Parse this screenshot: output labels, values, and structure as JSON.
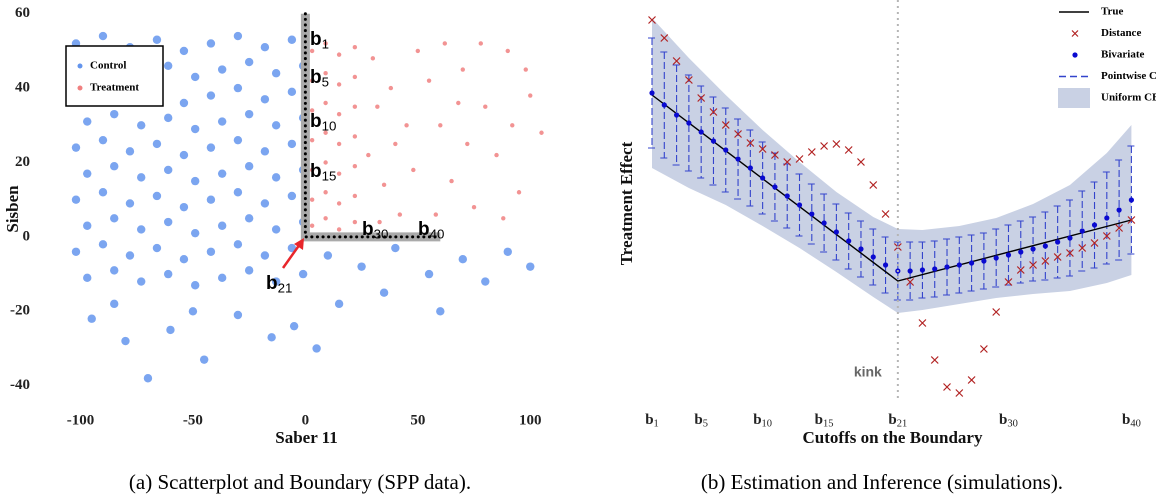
{
  "chart_data": [
    {
      "type": "scatter",
      "caption": "(a) Scatterplot and Boundary (SPP data).",
      "xlabel": "Saber 11",
      "ylabel": "Sisben",
      "xlim": [
        -110,
        111
      ],
      "ylim": [
        -46,
        61
      ],
      "xticks": [
        -100,
        -50,
        0,
        50,
        100
      ],
      "yticks": [
        -40,
        -20,
        0,
        20,
        40,
        60
      ],
      "legend": "top-left",
      "series": [
        {
          "name": "Control",
          "color": "#6495ed",
          "x": [
            -102,
            -90,
            -78,
            -66,
            -54,
            -42,
            -30,
            -18,
            -6,
            -97,
            -85,
            -73,
            -61,
            -49,
            -37,
            -25,
            -13,
            -1,
            -102,
            -90,
            -78,
            -66,
            -54,
            -42,
            -30,
            -18,
            -6,
            -97,
            -85,
            -73,
            -61,
            -49,
            -37,
            -25,
            -13,
            -1,
            -102,
            -90,
            -78,
            -66,
            -54,
            -42,
            -30,
            -18,
            -6,
            -97,
            -85,
            -73,
            -61,
            -49,
            -37,
            -25,
            -13,
            -1,
            -102,
            -90,
            -78,
            -66,
            -54,
            -42,
            -30,
            -18,
            -6,
            -97,
            -85,
            -73,
            -61,
            -49,
            -37,
            -25,
            -13,
            -1,
            -102,
            -90,
            -78,
            -66,
            -54,
            -42,
            -30,
            -18,
            -6,
            -97,
            -85,
            -73,
            -61,
            -49,
            -37,
            -25,
            -13,
            -1,
            -95,
            -80,
            -60,
            -45,
            -30,
            -15,
            -70,
            -5,
            -50,
            -85,
            10,
            25,
            40,
            55,
            70,
            90,
            15,
            35,
            60,
            80,
            100,
            5
          ],
          "values": [
            52,
            54,
            51,
            53,
            50,
            52,
            54,
            51,
            53,
            45,
            47,
            44,
            46,
            43,
            45,
            47,
            44,
            46,
            38,
            40,
            37,
            39,
            36,
            38,
            40,
            37,
            39,
            31,
            33,
            30,
            32,
            29,
            31,
            33,
            30,
            32,
            24,
            26,
            23,
            25,
            22,
            24,
            26,
            23,
            25,
            17,
            19,
            16,
            18,
            15,
            17,
            19,
            16,
            18,
            10,
            12,
            9,
            11,
            8,
            10,
            12,
            9,
            11,
            3,
            5,
            2,
            4,
            1,
            3,
            5,
            2,
            4,
            -4,
            -2,
            -5,
            -3,
            -6,
            -4,
            -2,
            -5,
            -3,
            -11,
            -9,
            -12,
            -10,
            -13,
            -11,
            -9,
            -12,
            -10,
            -22,
            -28,
            -25,
            -33,
            -21,
            -27,
            -38,
            -24,
            -20,
            -18,
            -5,
            -8,
            -3,
            -10,
            -6,
            -4,
            -18,
            -15,
            -20,
            -12,
            -8,
            -30
          ]
        },
        {
          "name": "Treatment",
          "color": "#f08080",
          "x": [
            3,
            9,
            15,
            22,
            3,
            9,
            15,
            22,
            3,
            9,
            15,
            22,
            3,
            9,
            15,
            22,
            3,
            9,
            15,
            22,
            3,
            9,
            15,
            22,
            3,
            9,
            15,
            22,
            30,
            38,
            45,
            28,
            35,
            42,
            50,
            32,
            48,
            55,
            40,
            33,
            60,
            65,
            70,
            75,
            80,
            85,
            90,
            95,
            100,
            105,
            62,
            72,
            88,
            58,
            78,
            98,
            68,
            92
          ],
          "values": [
            50,
            52,
            49,
            51,
            42,
            44,
            41,
            43,
            34,
            36,
            33,
            35,
            26,
            28,
            25,
            27,
            18,
            20,
            17,
            19,
            10,
            12,
            9,
            11,
            3,
            5,
            2,
            4,
            48,
            40,
            30,
            22,
            14,
            6,
            50,
            35,
            18,
            42,
            25,
            4,
            30,
            15,
            45,
            8,
            35,
            22,
            50,
            12,
            38,
            28,
            52,
            25,
            5,
            6,
            52,
            45,
            36,
            30
          ]
        }
      ],
      "boundary": {
        "color": "#aaaaaa",
        "x": [
          0,
          0,
          60
        ],
        "values": [
          60,
          0,
          0
        ]
      },
      "annotations": [
        "b1",
        "b5",
        "b10",
        "b15",
        "b30",
        "b40",
        "b21"
      ]
    },
    {
      "type": "line",
      "caption": "(b) Estimation and Inference (simulations).",
      "xlabel": "Cutoffs on the Boundary",
      "ylabel": "Treatment Effect",
      "xlim": [
        0.43,
        40.7
      ],
      "ylim": [
        -11.5,
        27
      ],
      "xticks": [
        {
          "value": 1,
          "label": "b1"
        },
        {
          "value": 5,
          "label": "b5"
        },
        {
          "value": 10,
          "label": "b10"
        },
        {
          "value": 15,
          "label": "b15"
        },
        {
          "value": 21,
          "label": "b21"
        },
        {
          "value": 30,
          "label": "b30"
        },
        {
          "value": 40,
          "label": "b40"
        }
      ],
      "legend": "top-right",
      "kink": {
        "x": 21,
        "label": "kink"
      },
      "series": [
        {
          "name": "True",
          "type": "line",
          "color": "#000000",
          "x": [
            1,
            21,
            40
          ],
          "values": [
            18.6,
            0,
            6.1
          ]
        },
        {
          "name": "Distance",
          "type": "cross",
          "color": "#b22222",
          "x": [
            1,
            2,
            3,
            4,
            5,
            6,
            7,
            8,
            9,
            10,
            11,
            12,
            13,
            14,
            15,
            16,
            17,
            18,
            19,
            20,
            21,
            22,
            23,
            24,
            25,
            26,
            27,
            28,
            29,
            30,
            31,
            32,
            33,
            34,
            35,
            36,
            37,
            38,
            39,
            40
          ],
          "values": [
            26.1,
            24.3,
            22.0,
            20.1,
            18.3,
            16.9,
            15.6,
            14.7,
            13.8,
            13.2,
            12.6,
            11.9,
            12.2,
            12.9,
            13.5,
            13.7,
            13.1,
            11.9,
            9.6,
            6.7,
            3.4,
            -0.1,
            -4.2,
            -7.9,
            -10.6,
            -11.2,
            -9.9,
            -6.8,
            -3.1,
            -0.1,
            1.1,
            1.6,
            2.0,
            2.4,
            2.8,
            3.3,
            3.8,
            4.5,
            5.3,
            6.1
          ]
        },
        {
          "name": "Bivariate",
          "type": "dot",
          "color": "#0a0ad0",
          "x": [
            1,
            2,
            3,
            4,
            5,
            6,
            7,
            8,
            9,
            10,
            11,
            12,
            13,
            14,
            15,
            16,
            17,
            18,
            19,
            20,
            21,
            22,
            23,
            24,
            25,
            26,
            27,
            28,
            29,
            30,
            31,
            32,
            33,
            34,
            35,
            36,
            37,
            38,
            39,
            40
          ],
          "values": [
            18.8,
            17.6,
            16.6,
            15.8,
            14.9,
            14.0,
            13.1,
            12.2,
            11.3,
            10.3,
            9.4,
            8.5,
            7.6,
            6.7,
            5.8,
            4.9,
            4.0,
            3.2,
            2.4,
            1.6,
            1.0,
            1.0,
            1.1,
            1.2,
            1.4,
            1.6,
            1.8,
            2.0,
            2.3,
            2.6,
            2.9,
            3.2,
            3.5,
            3.9,
            4.3,
            5.0,
            5.6,
            6.3,
            7.1,
            8.1
          ]
        },
        {
          "name": "Pointwise CI",
          "type": "errorbar",
          "color": "#3344cc",
          "error": [
            5.5,
            5.3,
            5.0,
            4.8,
            4.6,
            4.4,
            4.2,
            4.0,
            3.8,
            3.6,
            3.4,
            3.2,
            3.1,
            3.0,
            2.9,
            2.8,
            2.8,
            2.8,
            2.8,
            2.8,
            2.9,
            2.9,
            2.8,
            2.8,
            2.8,
            2.8,
            2.8,
            2.8,
            2.9,
            3.0,
            3.1,
            3.2,
            3.4,
            3.6,
            3.8,
            4.0,
            4.3,
            4.6,
            5.0,
            5.4
          ]
        },
        {
          "name": "Uniform CB",
          "type": "band",
          "color": "#c9d1e4",
          "x": [
            1,
            4,
            7,
            10,
            13,
            16,
            19,
            21,
            23,
            26,
            29,
            32,
            35,
            38,
            40
          ],
          "upper": [
            26.3,
            22.3,
            18.6,
            15.1,
            11.9,
            8.9,
            6.4,
            5.2,
            5.1,
            5.5,
            6.3,
            7.7,
            9.6,
            12.8,
            15.6
          ],
          "lower": [
            11.3,
            9.3,
            7.6,
            5.5,
            3.3,
            0.9,
            -1.6,
            -3.2,
            -2.9,
            -2.3,
            -1.7,
            -1.3,
            -1.0,
            -0.2,
            0.6
          ]
        }
      ]
    }
  ]
}
